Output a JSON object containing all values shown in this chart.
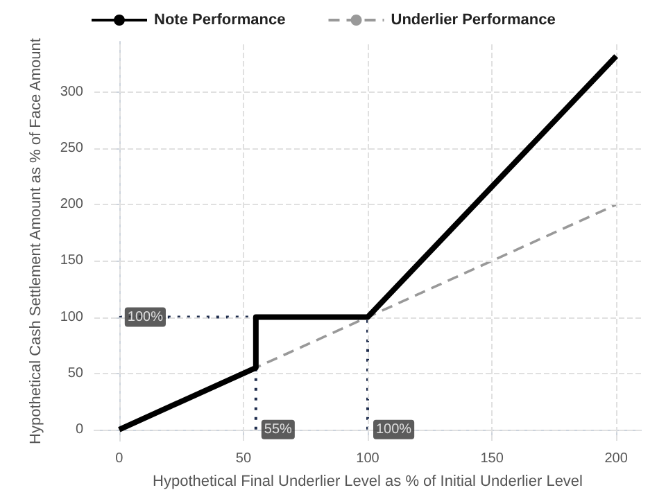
{
  "chart_data": {
    "type": "line",
    "xlabel": "Hypothetical Final Underlier Level as % of Initial Underlier Level",
    "ylabel": "Hypothetical Cash Settlement Amount as % of Face Amount",
    "xlim": [
      -10,
      210
    ],
    "xticks": [
      0,
      50,
      100,
      150,
      200
    ],
    "ylim": [
      -10,
      345
    ],
    "yticks": [
      0,
      50,
      100,
      150,
      200,
      250,
      300
    ],
    "series": [
      {
        "name": "Underlier Performance",
        "color": "#999999",
        "line_style": "dashed",
        "x": [
          0,
          200
        ],
        "values": [
          0,
          200
        ]
      },
      {
        "color": "#1f2d4d",
        "line_style": "dotted",
        "x": [
          0,
          55
        ],
        "values": [
          100,
          100
        ]
      },
      {
        "color": "#1f2d4d",
        "line_style": "dotted",
        "x": [
          55,
          55
        ],
        "values": [
          0,
          55
        ]
      },
      {
        "color": "#1f2d4d",
        "line_style": "dotted",
        "x": [
          100,
          100
        ],
        "values": [
          0,
          100
        ]
      },
      {
        "name": "Note Performance",
        "color": "#000000",
        "line_style": "solid",
        "x": [
          0,
          55,
          55,
          100,
          200
        ],
        "values": [
          0,
          55,
          100,
          100,
          332
        ]
      }
    ],
    "annotations": [
      {
        "text": "100%",
        "x": 0,
        "y": 100
      },
      {
        "text": "55%",
        "x": 55,
        "y": 0
      },
      {
        "text": "100%",
        "x": 100,
        "y": 0
      }
    ],
    "grid": true,
    "legend": "top left",
    "marker": "none"
  }
}
